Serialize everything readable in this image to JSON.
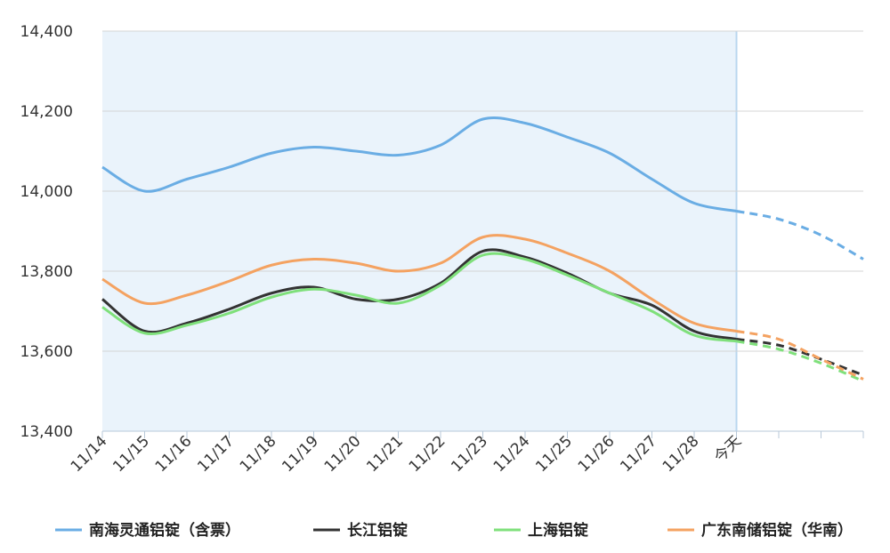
{
  "chart_data": {
    "type": "line",
    "categories": [
      "11/14",
      "11/15",
      "11/16",
      "11/17",
      "11/18",
      "11/19",
      "11/20",
      "11/21",
      "11/22",
      "11/23",
      "11/24",
      "11/25",
      "11/26",
      "11/27",
      "11/28",
      "今天"
    ],
    "forecast_points": 3,
    "ylim": [
      13400,
      14400
    ],
    "yticks": [
      13400,
      13600,
      13800,
      14000,
      14200,
      14400
    ],
    "grid": true,
    "legend_position": "bottom",
    "shaded_region": "history",
    "series": [
      {
        "name": "南海灵通铝锭（含票）",
        "color": "#6aade4",
        "values": [
          14060,
          14000,
          14030,
          14060,
          14095,
          14110,
          14100,
          14090,
          14115,
          14180,
          14170,
          14135,
          14095,
          14030,
          13970,
          13950
        ],
        "forecast": [
          13930,
          13890,
          13830
        ]
      },
      {
        "name": "长江铝锭",
        "color": "#333333",
        "values": [
          13730,
          13650,
          13670,
          13705,
          13745,
          13760,
          13730,
          13730,
          13770,
          13850,
          13835,
          13795,
          13745,
          13715,
          13650,
          13630
        ],
        "forecast": [
          13615,
          13580,
          13540
        ]
      },
      {
        "name": "上海铝锭",
        "color": "#7fe07b",
        "values": [
          13710,
          13645,
          13665,
          13695,
          13735,
          13755,
          13740,
          13720,
          13765,
          13840,
          13830,
          13790,
          13745,
          13700,
          13640,
          13625
        ],
        "forecast": [
          13605,
          13570,
          13525
        ]
      },
      {
        "name": "广东南储铝锭（华南）",
        "color": "#f4a261",
        "values": [
          13780,
          13720,
          13740,
          13775,
          13815,
          13830,
          13820,
          13800,
          13820,
          13885,
          13880,
          13845,
          13800,
          13730,
          13670,
          13650
        ],
        "forecast": [
          13630,
          13580,
          13530
        ]
      }
    ]
  }
}
